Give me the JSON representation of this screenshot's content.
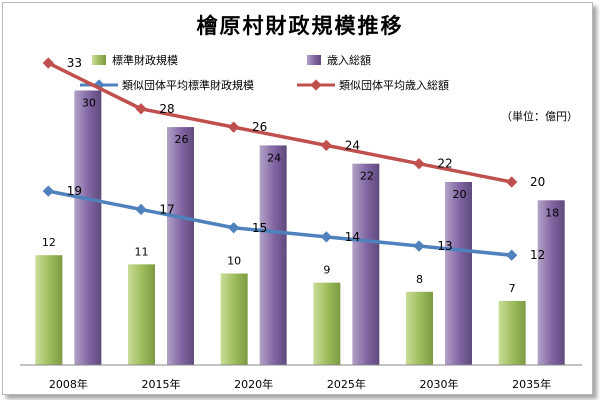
{
  "title": "檜原村財政規模推移",
  "unit_label": "（単位：億円）",
  "colors": {
    "bar_std": "#9bbb59",
    "bar_rev": "#8064a2",
    "line_std": "#4f81bd",
    "line_rev": "#c0504d"
  },
  "chart_data": {
    "type": "bar",
    "title": "檜原村財政規模推移",
    "categories": [
      "2008年",
      "2015年",
      "2020年",
      "2025年",
      "2030年",
      "2035年"
    ],
    "ylim": [
      0,
      40
    ],
    "grid": false,
    "legend_position": "top",
    "series": [
      {
        "name": "標準財政規模",
        "type": "bar",
        "values": [
          12,
          11,
          10,
          9,
          8,
          7
        ]
      },
      {
        "name": "歳入総額",
        "type": "bar",
        "values": [
          30,
          26,
          24,
          22,
          20,
          18
        ]
      },
      {
        "name": "類似団体平均標準財政規模",
        "type": "line",
        "values": [
          19,
          17,
          15,
          14,
          13,
          12
        ]
      },
      {
        "name": "類似団体平均歳入総額",
        "type": "line",
        "values": [
          33,
          28,
          26,
          24,
          22,
          20
        ]
      }
    ]
  }
}
